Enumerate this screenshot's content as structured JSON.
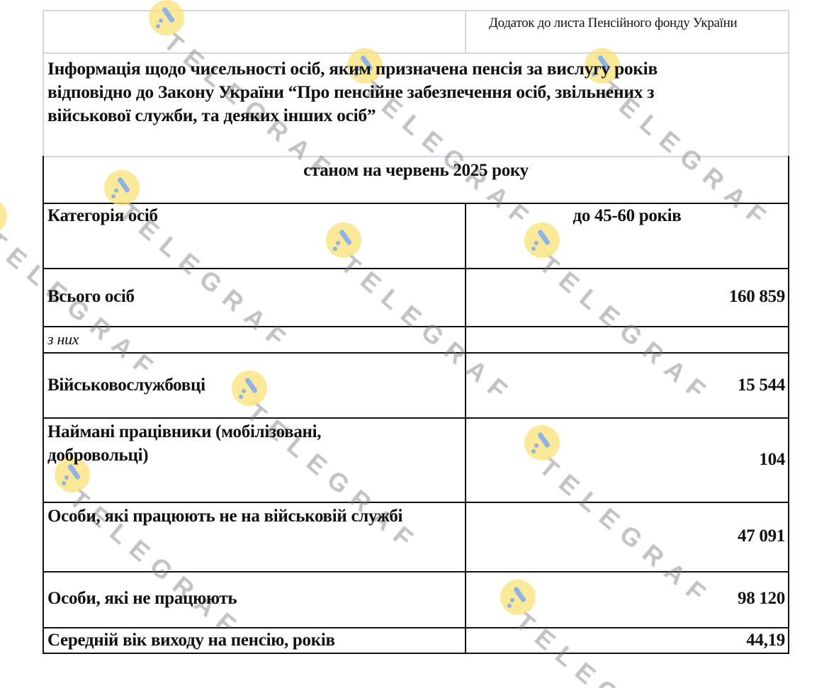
{
  "header_note": "Додаток до листа Пенсійного фонду України",
  "title_lines": [
    "Інформація щодо чисельності осіб, яким призначена пенсія за вислугу років",
    "відповідно до Закону України “Про пенсійне забезпечення осіб, звільнених з",
    "військової служби, та деяких інших осіб”"
  ],
  "as_of": "станом на червень 2025 року",
  "table": {
    "headers": [
      "Категорія осіб",
      "до 45-60 років"
    ],
    "rows": [
      {
        "label": "Всього осіб",
        "value": "160 859"
      },
      {
        "label": "з них",
        "value": ""
      },
      {
        "label": "Військовослужбовці",
        "value": "15 544"
      },
      {
        "label": "Наймані працівники (мобілізовані, добровольці)",
        "label_lines": [
          "Наймані працівники (мобілізовані,",
          "добровольці)"
        ],
        "value": "104"
      },
      {
        "label": "Особи, які працюють не на військовій службі",
        "value": "47 091"
      },
      {
        "label": "Особи, які не працюють",
        "value": "98 120"
      },
      {
        "label": "Середній вік виходу на пенсію, років",
        "value": "44,19"
      }
    ]
  },
  "watermark": "TELEGRAF",
  "colors": {
    "watermark_logo": "#fae178",
    "watermark_logo_mark": "#8fb3e6",
    "header_border": "#d4d4e6"
  }
}
